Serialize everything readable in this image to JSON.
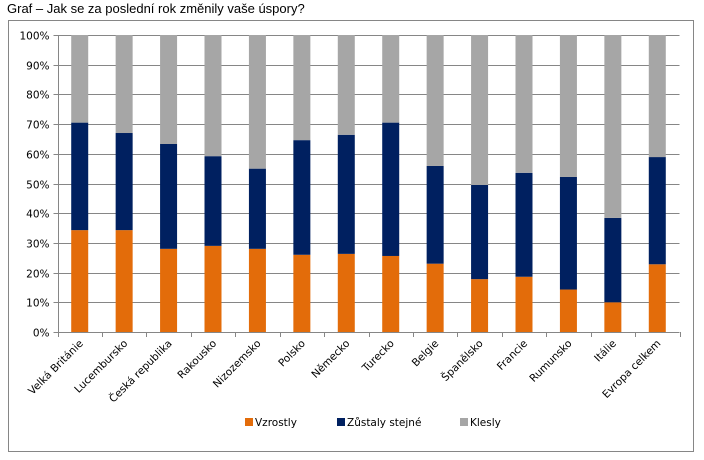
{
  "title": "Graf – Jak se za poslední rok změnily vaše úspory?",
  "chart_data": {
    "type": "bar",
    "stacked": true,
    "percent_stacked": true,
    "title": "Graf – Jak se za poslední rok změnily vaše úspory?",
    "xlabel": "",
    "ylabel": "",
    "ylim": [
      0,
      100
    ],
    "y_ticks": [
      "0%",
      "10%",
      "20%",
      "30%",
      "40%",
      "50%",
      "60%",
      "70%",
      "80%",
      "90%",
      "100%"
    ],
    "grid": true,
    "legend_position": "bottom",
    "categories": [
      "Velká Británie",
      "Lucembursko",
      "Česká republika",
      "Rakousko",
      "Nizozemsko",
      "Polsko",
      "Německo",
      "Turecko",
      "Belgie",
      "Španělsko",
      "Francie",
      "Rumunsko",
      "Itálie",
      "Evropa celkem"
    ],
    "series": [
      {
        "name": "Vzrostly",
        "color": "#E36C0A",
        "values": [
          34.3,
          34.3,
          28.0,
          29.0,
          28.0,
          26.0,
          26.3,
          25.6,
          23.0,
          17.8,
          18.6,
          14.3,
          10.0,
          22.8
        ]
      },
      {
        "name": "Zůstaly stejné",
        "color": "#002060",
        "values": [
          36.2,
          32.7,
          35.3,
          30.2,
          27.0,
          38.6,
          40.1,
          44.9,
          32.9,
          31.7,
          35.0,
          37.9,
          28.4,
          36.1
        ]
      },
      {
        "name": "Klesly",
        "color": "#A6A6A6",
        "values": [
          29.5,
          33.0,
          36.7,
          40.8,
          45.0,
          35.4,
          33.6,
          29.5,
          44.1,
          50.5,
          46.4,
          47.8,
          61.6,
          41.1
        ]
      }
    ]
  }
}
